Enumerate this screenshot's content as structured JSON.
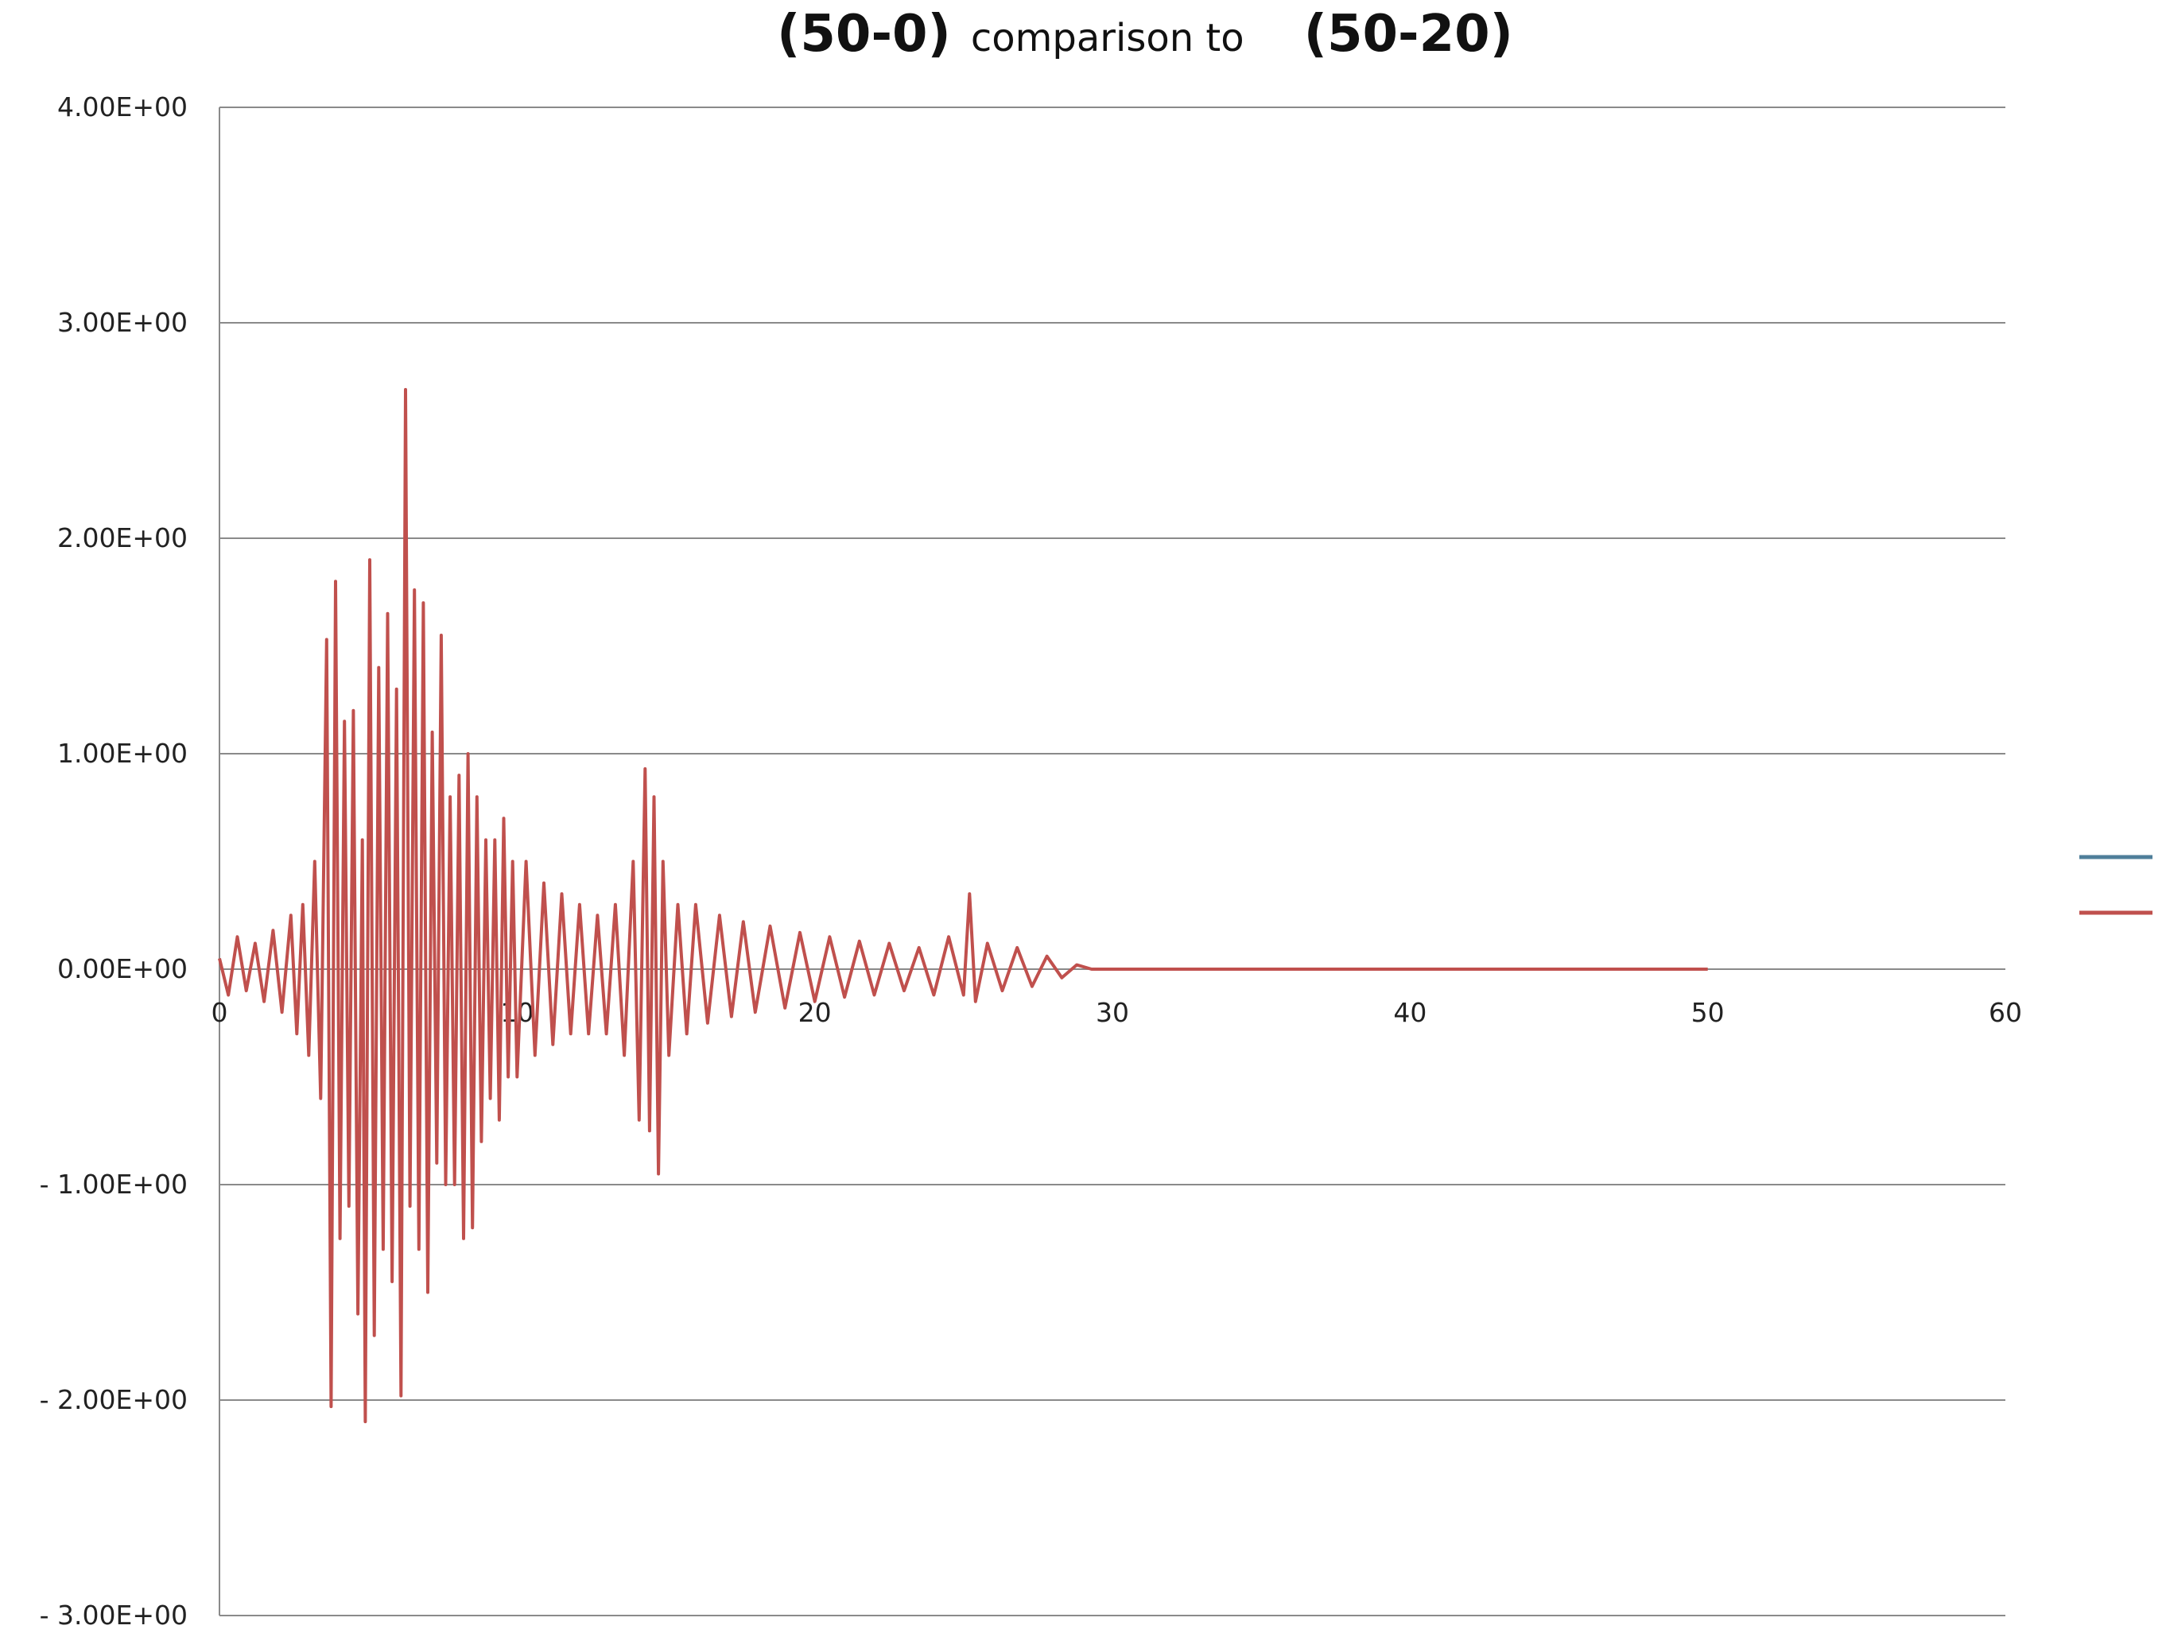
{
  "chart_data": {
    "type": "line",
    "title_parts": [
      "(50-0)",
      "comparison to",
      "(50-20)"
    ],
    "xlabel": "",
    "ylabel": "",
    "xlim": [
      0,
      60
    ],
    "ylim": [
      -3,
      4
    ],
    "x_ticks": [
      "0",
      "10",
      "20",
      "30",
      "40",
      "50",
      "60"
    ],
    "y_ticks": [
      "4.00E+00",
      "3.00E+00",
      "2.00E+00",
      "1.00E+00",
      "0.00E+00",
      "- 1.00E+00",
      "- 2.00E+00",
      "- 3.00E+00"
    ],
    "y_tick_values": [
      4,
      3,
      2,
      1,
      0,
      -1,
      -2,
      -3
    ],
    "grid": "horizontal",
    "legend_position": "right",
    "series": [
      {
        "color": "#4f7f9a",
        "points": []
      },
      {
        "color": "#c0504d",
        "points": [
          [
            0.0,
            0.05
          ],
          [
            0.3,
            -0.12
          ],
          [
            0.6,
            0.15
          ],
          [
            0.9,
            -0.1
          ],
          [
            1.2,
            0.12
          ],
          [
            1.5,
            -0.15
          ],
          [
            1.8,
            0.18
          ],
          [
            2.1,
            -0.2
          ],
          [
            2.4,
            0.25
          ],
          [
            2.6,
            -0.3
          ],
          [
            2.8,
            0.3
          ],
          [
            3.0,
            -0.4
          ],
          [
            3.2,
            0.5
          ],
          [
            3.4,
            -0.6
          ],
          [
            3.6,
            1.53
          ],
          [
            3.75,
            -2.03
          ],
          [
            3.9,
            1.8
          ],
          [
            4.05,
            -1.25
          ],
          [
            4.2,
            1.15
          ],
          [
            4.35,
            -1.1
          ],
          [
            4.5,
            1.2
          ],
          [
            4.65,
            -1.6
          ],
          [
            4.8,
            0.6
          ],
          [
            4.9,
            -2.1
          ],
          [
            5.05,
            1.9
          ],
          [
            5.2,
            -1.7
          ],
          [
            5.35,
            1.4
          ],
          [
            5.5,
            -1.3
          ],
          [
            5.65,
            1.65
          ],
          [
            5.8,
            -1.45
          ],
          [
            5.95,
            1.3
          ],
          [
            6.1,
            -1.98
          ],
          [
            6.25,
            2.69
          ],
          [
            6.4,
            -1.1
          ],
          [
            6.55,
            1.76
          ],
          [
            6.7,
            -1.3
          ],
          [
            6.85,
            1.7
          ],
          [
            7.0,
            -1.5
          ],
          [
            7.15,
            1.1
          ],
          [
            7.3,
            -0.9
          ],
          [
            7.45,
            1.55
          ],
          [
            7.6,
            -1.0
          ],
          [
            7.75,
            0.8
          ],
          [
            7.9,
            -1.0
          ],
          [
            8.05,
            0.9
          ],
          [
            8.2,
            -1.25
          ],
          [
            8.35,
            1.0
          ],
          [
            8.5,
            -1.2
          ],
          [
            8.65,
            0.8
          ],
          [
            8.8,
            -0.8
          ],
          [
            8.95,
            0.6
          ],
          [
            9.1,
            -0.6
          ],
          [
            9.25,
            0.6
          ],
          [
            9.4,
            -0.7
          ],
          [
            9.55,
            0.7
          ],
          [
            9.7,
            -0.5
          ],
          [
            9.85,
            0.5
          ],
          [
            10.0,
            -0.5
          ],
          [
            10.3,
            0.5
          ],
          [
            10.6,
            -0.4
          ],
          [
            10.9,
            0.4
          ],
          [
            11.2,
            -0.35
          ],
          [
            11.5,
            0.35
          ],
          [
            11.8,
            -0.3
          ],
          [
            12.1,
            0.3
          ],
          [
            12.4,
            -0.3
          ],
          [
            12.7,
            0.25
          ],
          [
            13.0,
            -0.3
          ],
          [
            13.3,
            0.3
          ],
          [
            13.6,
            -0.4
          ],
          [
            13.9,
            0.5
          ],
          [
            14.1,
            -0.7
          ],
          [
            14.3,
            0.93
          ],
          [
            14.45,
            -0.75
          ],
          [
            14.6,
            0.8
          ],
          [
            14.75,
            -0.95
          ],
          [
            14.9,
            0.5
          ],
          [
            15.1,
            -0.4
          ],
          [
            15.4,
            0.3
          ],
          [
            15.7,
            -0.3
          ],
          [
            16.0,
            0.3
          ],
          [
            16.4,
            -0.25
          ],
          [
            16.8,
            0.25
          ],
          [
            17.2,
            -0.22
          ],
          [
            17.6,
            0.22
          ],
          [
            18.0,
            -0.2
          ],
          [
            18.5,
            0.2
          ],
          [
            19.0,
            -0.18
          ],
          [
            19.5,
            0.17
          ],
          [
            20.0,
            -0.15
          ],
          [
            20.5,
            0.15
          ],
          [
            21.0,
            -0.13
          ],
          [
            21.5,
            0.13
          ],
          [
            22.0,
            -0.12
          ],
          [
            22.5,
            0.12
          ],
          [
            23.0,
            -0.1
          ],
          [
            23.5,
            0.1
          ],
          [
            24.0,
            -0.12
          ],
          [
            24.5,
            0.15
          ],
          [
            25.0,
            -0.12
          ],
          [
            25.2,
            0.35
          ],
          [
            25.4,
            -0.15
          ],
          [
            25.8,
            0.12
          ],
          [
            26.3,
            -0.1
          ],
          [
            26.8,
            0.1
          ],
          [
            27.3,
            -0.08
          ],
          [
            27.8,
            0.06
          ],
          [
            28.3,
            -0.04
          ],
          [
            28.8,
            0.02
          ],
          [
            29.3,
            0.0
          ],
          [
            30.0,
            0.0
          ],
          [
            40.0,
            0.0
          ],
          [
            50.0,
            0.0
          ]
        ]
      }
    ]
  }
}
